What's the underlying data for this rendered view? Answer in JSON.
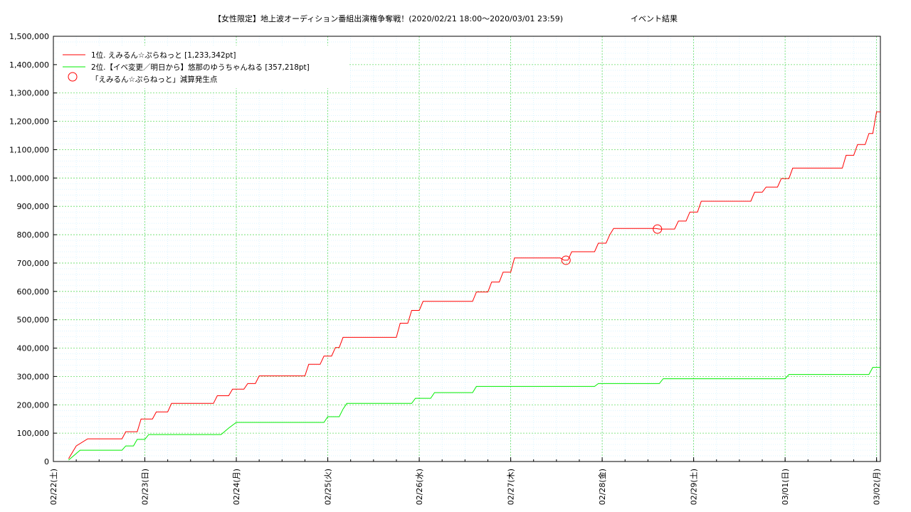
{
  "chart_data": {
    "type": "line",
    "title": "【女性限定】地上波オーディション番組出演権争奪戦！(2020/02/21 18:00〜2020/03/01 23:59)",
    "subtitle": "イベント結果",
    "xlabel": "",
    "ylabel": "",
    "ylim": [
      0,
      1500000
    ],
    "xlim": [
      "2020-02-22 00:00",
      "2020-03-02 01:00"
    ],
    "grid": true,
    "legend_position": "top-left",
    "y_ticks": [
      "0",
      "100,000",
      "200,000",
      "300,000",
      "400,000",
      "500,000",
      "600,000",
      "700,000",
      "800,000",
      "900,000",
      "1,000,000",
      "1,100,000",
      "1,200,000",
      "1,300,000",
      "1,400,000",
      "1,500,000"
    ],
    "x_ticks": [
      {
        "label": "02/22(土)",
        "x": "2020-02-22 00:00"
      },
      {
        "label": "02/23(日)",
        "x": "2020-02-23 00:00"
      },
      {
        "label": "02/24(月)",
        "x": "2020-02-24 00:00"
      },
      {
        "label": "02/25(火)",
        "x": "2020-02-25 00:00"
      },
      {
        "label": "02/26(水)",
        "x": "2020-02-26 00:00"
      },
      {
        "label": "02/27(木)",
        "x": "2020-02-27 00:00"
      },
      {
        "label": "02/28(金)",
        "x": "2020-02-28 00:00"
      },
      {
        "label": "02/29(土)",
        "x": "2020-02-29 00:00"
      },
      {
        "label": "03/01(日)",
        "x": "2020-03-01 00:00"
      },
      {
        "label": "03/02(月)",
        "x": "2020-03-02 00:00"
      }
    ],
    "series": [
      {
        "name": "1位. えみるん☆ぷらねっと [1,233,342pt]",
        "color": "#ff0000",
        "points": [
          [
            "2020-02-22 04:00",
            10000
          ],
          [
            "2020-02-22 06:00",
            55000
          ],
          [
            "2020-02-22 09:00",
            80000
          ],
          [
            "2020-02-22 18:00",
            80000
          ],
          [
            "2020-02-22 19:00",
            105000
          ],
          [
            "2020-02-22 22:00",
            105000
          ],
          [
            "2020-02-22 23:00",
            150000
          ],
          [
            "2020-02-23 02:00",
            150000
          ],
          [
            "2020-02-23 03:00",
            175000
          ],
          [
            "2020-02-23 06:00",
            175000
          ],
          [
            "2020-02-23 07:00",
            205000
          ],
          [
            "2020-02-23 18:00",
            205000
          ],
          [
            "2020-02-23 19:00",
            232000
          ],
          [
            "2020-02-23 22:00",
            232000
          ],
          [
            "2020-02-23 23:00",
            255000
          ],
          [
            "2020-02-24 02:00",
            255000
          ],
          [
            "2020-02-24 03:00",
            275000
          ],
          [
            "2020-02-24 05:00",
            275000
          ],
          [
            "2020-02-24 06:00",
            302000
          ],
          [
            "2020-02-24 18:00",
            302000
          ],
          [
            "2020-02-24 19:00",
            343000
          ],
          [
            "2020-02-24 22:00",
            343000
          ],
          [
            "2020-02-24 23:00",
            372000
          ],
          [
            "2020-02-25 01:00",
            372000
          ],
          [
            "2020-02-25 02:00",
            402000
          ],
          [
            "2020-02-25 03:00",
            402000
          ],
          [
            "2020-02-25 04:00",
            438000
          ],
          [
            "2020-02-25 18:00",
            438000
          ],
          [
            "2020-02-25 19:00",
            488000
          ],
          [
            "2020-02-25 21:00",
            488000
          ],
          [
            "2020-02-25 22:00",
            533000
          ],
          [
            "2020-02-26 00:00",
            533000
          ],
          [
            "2020-02-26 01:00",
            565000
          ],
          [
            "2020-02-26 14:00",
            565000
          ],
          [
            "2020-02-26 15:00",
            598000
          ],
          [
            "2020-02-26 18:00",
            598000
          ],
          [
            "2020-02-26 19:00",
            633000
          ],
          [
            "2020-02-26 21:00",
            633000
          ],
          [
            "2020-02-26 22:00",
            668000
          ],
          [
            "2020-02-27 00:00",
            668000
          ],
          [
            "2020-02-27 01:00",
            718000
          ],
          [
            "2020-02-27 13:00",
            718000
          ],
          [
            "2020-02-27 14:00",
            710000
          ],
          [
            "2020-02-27 15:00",
            710000
          ],
          [
            "2020-02-27 16:00",
            740000
          ],
          [
            "2020-02-27 22:00",
            740000
          ],
          [
            "2020-02-27 23:00",
            770000
          ],
          [
            "2020-02-28 01:00",
            770000
          ],
          [
            "2020-02-28 02:00",
            800000
          ],
          [
            "2020-02-28 03:00",
            822000
          ],
          [
            "2020-02-28 14:00",
            822000
          ],
          [
            "2020-02-28 15:00",
            820000
          ],
          [
            "2020-02-28 19:00",
            820000
          ],
          [
            "2020-02-28 20:00",
            848000
          ],
          [
            "2020-02-28 22:00",
            848000
          ],
          [
            "2020-02-28 23:00",
            880000
          ],
          [
            "2020-02-29 01:00",
            880000
          ],
          [
            "2020-02-29 02:00",
            918000
          ],
          [
            "2020-02-29 15:00",
            918000
          ],
          [
            "2020-02-29 16:00",
            950000
          ],
          [
            "2020-02-29 18:00",
            950000
          ],
          [
            "2020-02-29 19:00",
            968000
          ],
          [
            "2020-02-29 22:00",
            968000
          ],
          [
            "2020-02-29 23:00",
            998000
          ],
          [
            "2020-03-01 01:00",
            998000
          ],
          [
            "2020-03-01 02:00",
            1035000
          ],
          [
            "2020-03-01 15:00",
            1035000
          ],
          [
            "2020-03-01 16:00",
            1080000
          ],
          [
            "2020-03-01 18:00",
            1080000
          ],
          [
            "2020-03-01 19:00",
            1118000
          ],
          [
            "2020-03-01 21:00",
            1118000
          ],
          [
            "2020-03-01 22:00",
            1157000
          ],
          [
            "2020-03-01 23:00",
            1157000
          ],
          [
            "2020-03-01 23:59",
            1233342
          ],
          [
            "2020-03-02 01:00",
            1233342
          ]
        ]
      },
      {
        "name": "2位.【イベ変更／明日から】悠那のゆうちゃんねる [357,218pt]",
        "color": "#00ee00",
        "points": [
          [
            "2020-02-22 04:00",
            5000
          ],
          [
            "2020-02-22 07:00",
            40000
          ],
          [
            "2020-02-22 18:00",
            40000
          ],
          [
            "2020-02-22 19:00",
            55000
          ],
          [
            "2020-02-22 21:00",
            55000
          ],
          [
            "2020-02-22 22:00",
            78000
          ],
          [
            "2020-02-23 00:00",
            78000
          ],
          [
            "2020-02-23 01:00",
            95000
          ],
          [
            "2020-02-23 20:00",
            95000
          ],
          [
            "2020-02-23 22:00",
            118000
          ],
          [
            "2020-02-24 00:00",
            138000
          ],
          [
            "2020-02-24 23:00",
            138000
          ],
          [
            "2020-02-25 00:00",
            158000
          ],
          [
            "2020-02-25 03:00",
            158000
          ],
          [
            "2020-02-25 04:00",
            185000
          ],
          [
            "2020-02-25 05:00",
            205000
          ],
          [
            "2020-02-25 22:00",
            205000
          ],
          [
            "2020-02-25 23:00",
            223000
          ],
          [
            "2020-02-26 03:00",
            223000
          ],
          [
            "2020-02-26 04:00",
            243000
          ],
          [
            "2020-02-26 14:00",
            243000
          ],
          [
            "2020-02-26 15:00",
            265000
          ],
          [
            "2020-02-27 22:00",
            265000
          ],
          [
            "2020-02-27 23:00",
            275000
          ],
          [
            "2020-02-28 15:00",
            275000
          ],
          [
            "2020-02-28 16:00",
            292000
          ],
          [
            "2020-03-01 00:00",
            292000
          ],
          [
            "2020-03-01 01:00",
            307000
          ],
          [
            "2020-03-01 22:00",
            307000
          ],
          [
            "2020-03-01 23:00",
            332000
          ],
          [
            "2020-03-02 01:00",
            332000
          ],
          [
            "2020-03-02 02:00",
            357218
          ],
          [
            "2020-03-02 03:00",
            357218
          ]
        ]
      }
    ],
    "markers": {
      "name": "「えみるん☆ぷらねっと」減算発生点",
      "color": "#ff0000",
      "points": [
        [
          "2020-02-27 14:30",
          710000
        ],
        [
          "2020-02-28 14:30",
          820000
        ]
      ]
    }
  }
}
